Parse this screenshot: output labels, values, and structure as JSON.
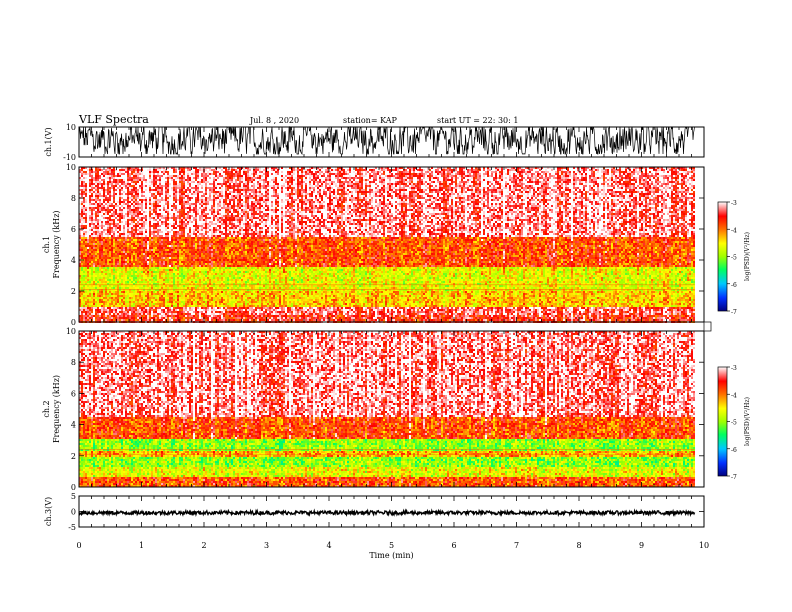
{
  "header": {
    "title": "VLF Spectra",
    "date": "Jul. 8 , 2020",
    "station": "station= KAP",
    "start": "start UT =  22: 30: 1"
  },
  "colors": {
    "spectrum_scale": [
      "#000080",
      "#0040ff",
      "#00c0ff",
      "#00ff80",
      "#80ff00",
      "#ffff00",
      "#ff8000",
      "#ff0000",
      "#ffffff"
    ],
    "trace": "#000000"
  },
  "chart_data": [
    {
      "type": "line",
      "panel": "ch1-waveform",
      "ylabel": "ch.1(V)",
      "ylim": [
        -10,
        10
      ],
      "yticks": [
        "10",
        "-10"
      ],
      "description_values": "noisy waveform saturating between about -8 and 10 V"
    },
    {
      "type": "heatmap",
      "panel": "ch1-spectrogram",
      "ylabel": "ch.1\nFrequency (kHz)",
      "ylabel_lines": [
        "ch.1",
        "Frequency (kHz)"
      ],
      "xlim": [
        0,
        10
      ],
      "ylim": [
        0,
        10
      ],
      "yticks": [
        "0",
        "2",
        "4",
        "6",
        "8",
        "10"
      ],
      "colorbar": {
        "ticks": [
          "-3",
          "-4",
          "-5",
          "-6",
          "-7"
        ],
        "label": "log(PSD)(V²/Hz)",
        "range": [
          -7,
          -3
        ]
      },
      "bands": [
        {
          "fmin": 0.0,
          "fmax": 0.4,
          "level": -3.5
        },
        {
          "fmin": 0.4,
          "fmax": 1.0,
          "level": -3.3
        },
        {
          "fmin": 1.0,
          "fmax": 2.0,
          "level": -4.3
        },
        {
          "fmin": 2.0,
          "fmax": 3.5,
          "level": -4.6
        },
        {
          "fmin": 3.5,
          "fmax": 5.5,
          "level": -3.8
        },
        {
          "fmin": 5.5,
          "fmax": 10.0,
          "level": -3.2
        }
      ]
    },
    {
      "type": "heatmap",
      "panel": "ch2-spectrogram",
      "ylabel_lines": [
        "ch.2",
        "Frequency (kHz)"
      ],
      "xlim": [
        0,
        10
      ],
      "ylim": [
        0,
        10
      ],
      "yticks": [
        "0",
        "2",
        "4",
        "6",
        "8",
        "10"
      ],
      "colorbar": {
        "ticks": [
          "-3",
          "-4",
          "-5",
          "-6",
          "-7"
        ],
        "label": "log(PSD)(V²/Hz)",
        "range": [
          -7,
          -3
        ]
      },
      "bands": [
        {
          "fmin": 0.0,
          "fmax": 0.6,
          "level": -3.8
        },
        {
          "fmin": 0.6,
          "fmax": 1.3,
          "level": -4.6
        },
        {
          "fmin": 1.3,
          "fmax": 1.9,
          "level": -5.0
        },
        {
          "fmin": 1.9,
          "fmax": 2.3,
          "level": -4.2
        },
        {
          "fmin": 2.3,
          "fmax": 3.1,
          "level": -5.0
        },
        {
          "fmin": 3.1,
          "fmax": 4.5,
          "level": -3.8
        },
        {
          "fmin": 4.5,
          "fmax": 10.0,
          "level": -3.2
        }
      ]
    },
    {
      "type": "line",
      "panel": "ch3-waveform",
      "ylabel": "ch.3(V)",
      "ylim": [
        -5,
        5
      ],
      "yticks": [
        "5",
        "0",
        "-5"
      ],
      "level": -0.4,
      "amplitude": 0.6
    }
  ],
  "xaxis": {
    "label": "Time (min)",
    "ticks": [
      "0",
      "1",
      "2",
      "3",
      "4",
      "5",
      "6",
      "7",
      "8",
      "9",
      "10"
    ],
    "range": [
      0,
      10
    ],
    "data_end": 9.85
  }
}
